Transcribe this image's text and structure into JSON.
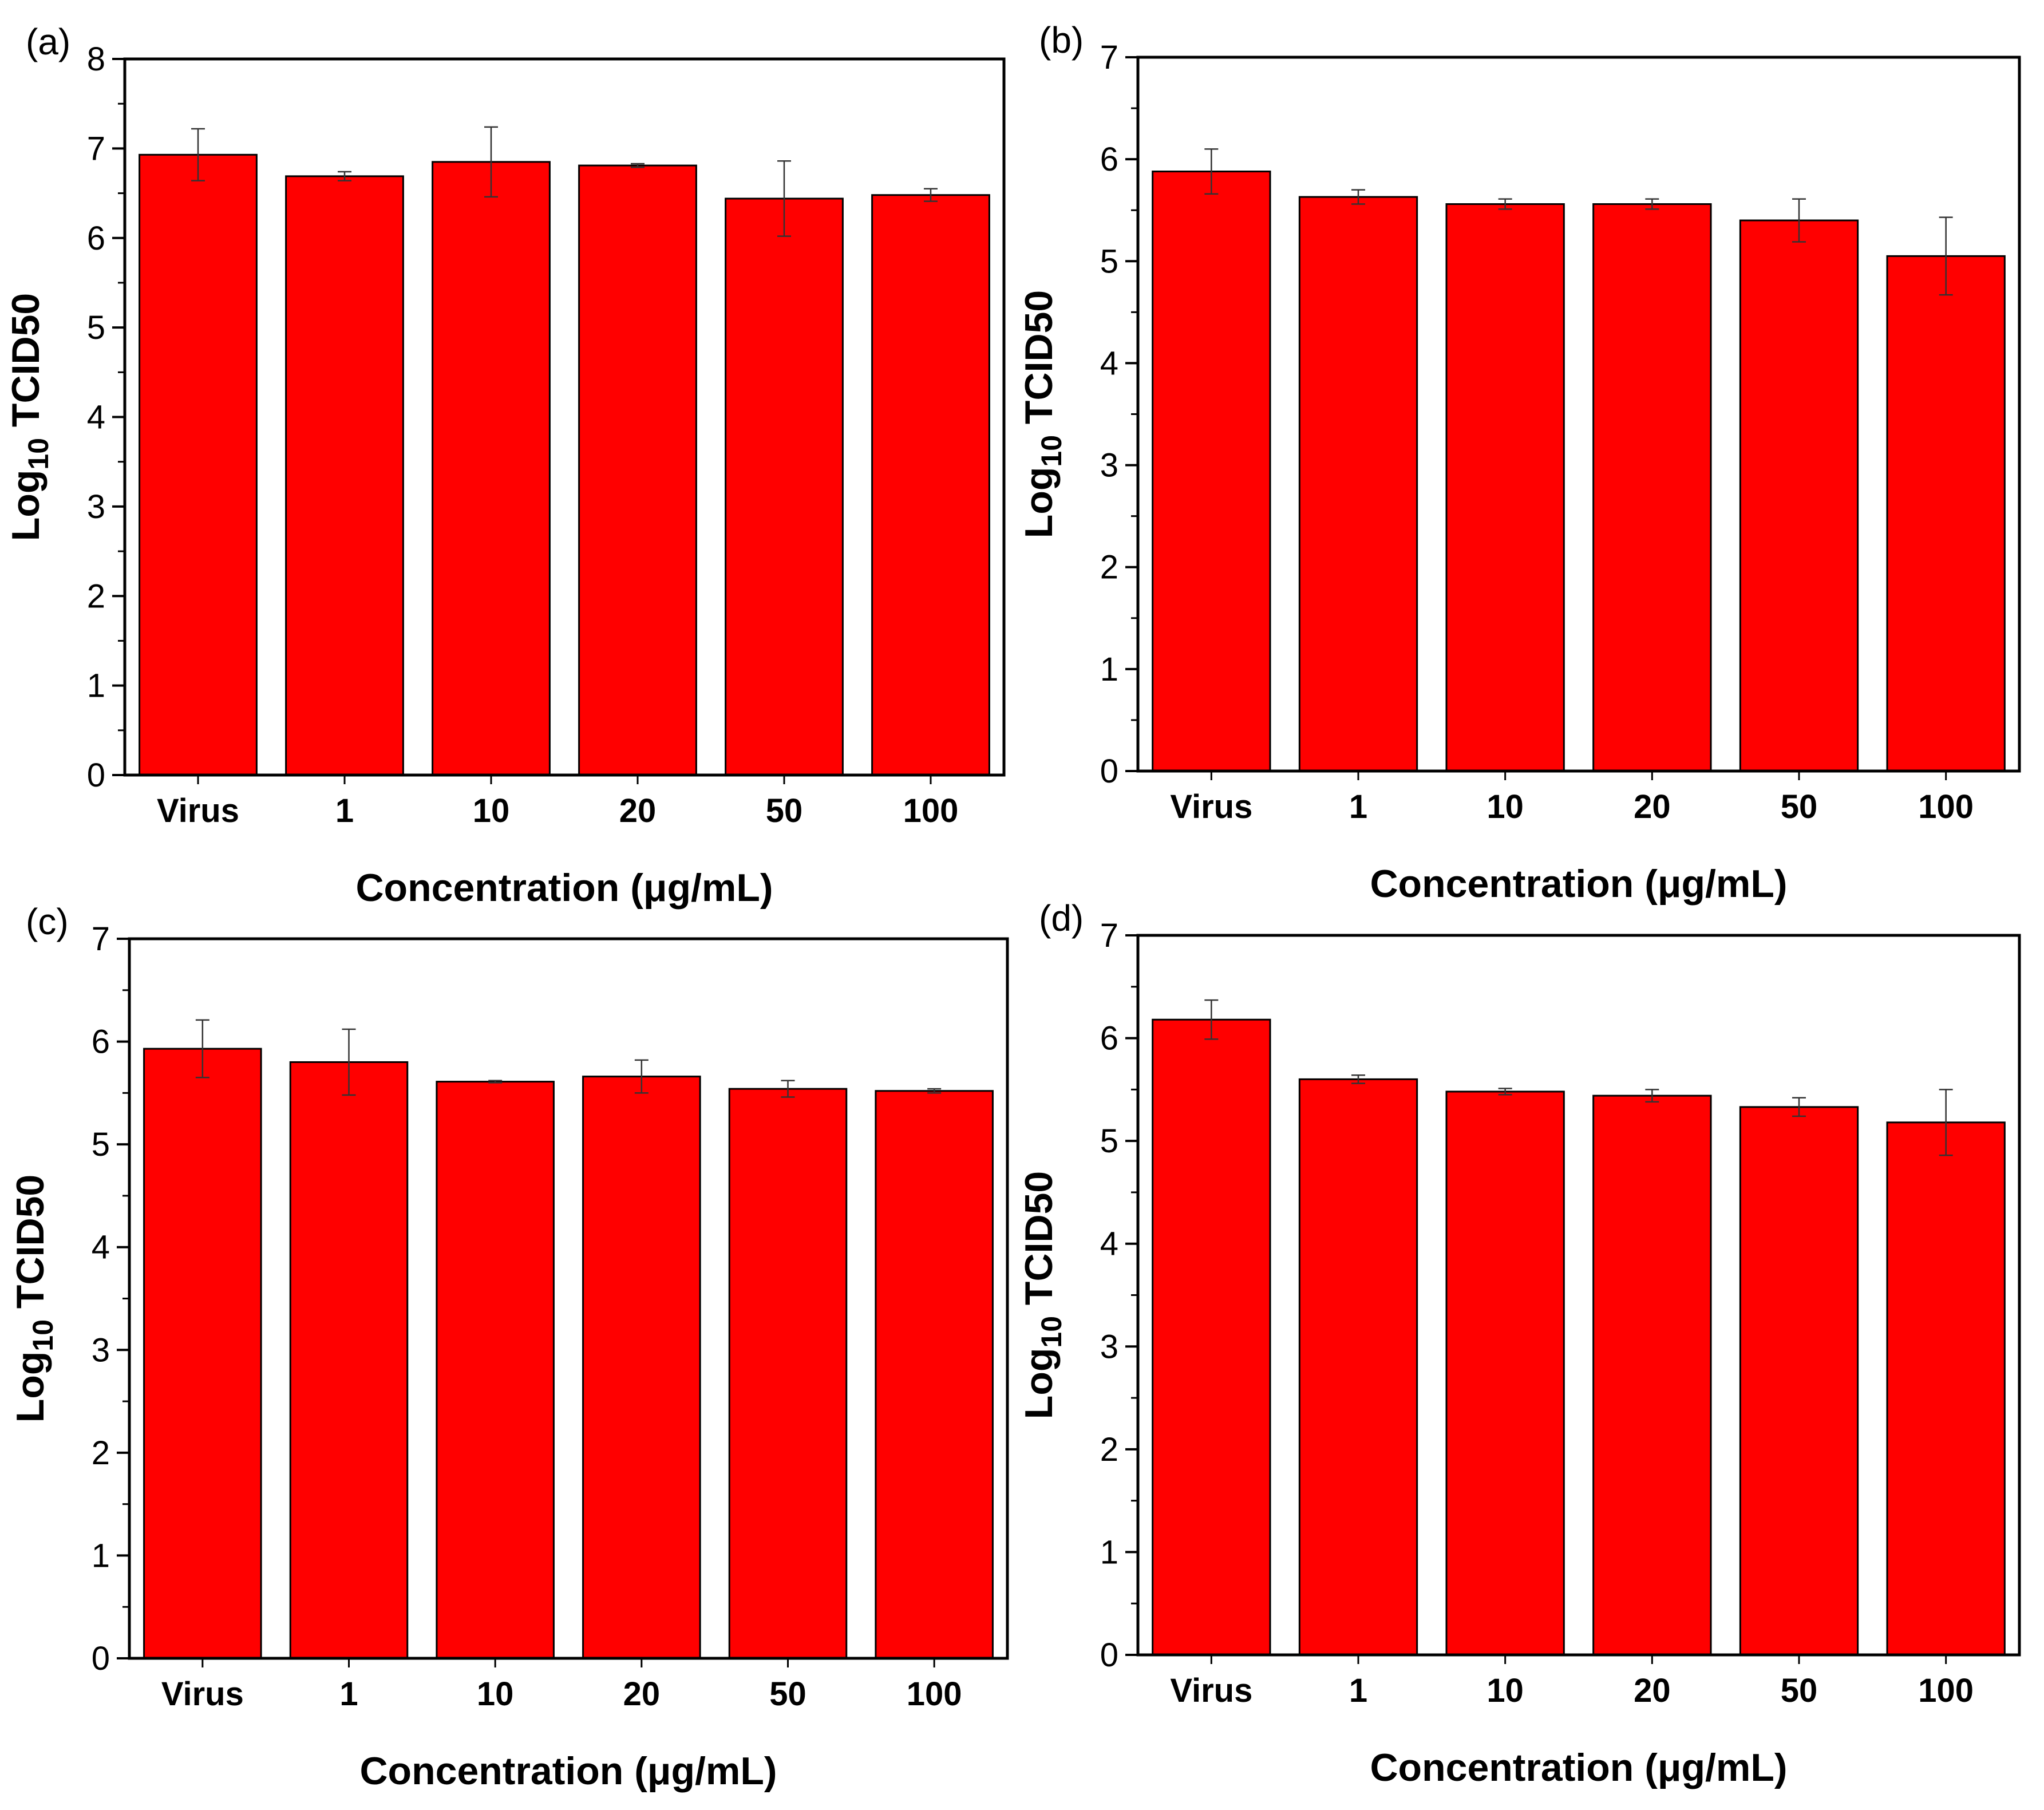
{
  "chart_data": [
    {
      "panel_label": "(a)",
      "type": "bar",
      "categories": [
        "Virus",
        "1",
        "10",
        "20",
        "50",
        "100"
      ],
      "series": [
        {
          "values": [
            6.93,
            6.69,
            6.85,
            6.81,
            6.44,
            6.48
          ],
          "errors": [
            0.29,
            0.05,
            0.39,
            0.02,
            0.42,
            0.07
          ]
        }
      ],
      "ylim": [
        0,
        8
      ],
      "yticks": [
        0,
        1,
        2,
        3,
        4,
        5,
        6,
        7,
        8
      ],
      "xlabel": "Concentration (μg/mL)",
      "ylabel_main": "Log",
      "ylabel_sub": "10",
      "ylabel_rest": " TCID50",
      "bar_color": "#ff0000",
      "grid": false
    },
    {
      "panel_label": "(b)",
      "type": "bar",
      "categories": [
        "Virus",
        "1",
        "10",
        "20",
        "50",
        "100"
      ],
      "series": [
        {
          "values": [
            5.88,
            5.63,
            5.56,
            5.56,
            5.4,
            5.05
          ],
          "errors": [
            0.22,
            0.07,
            0.05,
            0.05,
            0.21,
            0.38
          ]
        }
      ],
      "ylim": [
        0,
        7
      ],
      "yticks": [
        0,
        1,
        2,
        3,
        4,
        5,
        6,
        7
      ],
      "xlabel": "Concentration (μg/mL)",
      "ylabel_main": "Log",
      "ylabel_sub": "10",
      "ylabel_rest": " TCID50",
      "bar_color": "#ff0000",
      "grid": false
    },
    {
      "panel_label": "(c)",
      "type": "bar",
      "categories": [
        "Virus",
        "1",
        "10",
        "20",
        "50",
        "100"
      ],
      "series": [
        {
          "values": [
            5.93,
            5.8,
            5.61,
            5.66,
            5.54,
            5.52
          ],
          "errors": [
            0.28,
            0.32,
            0.01,
            0.16,
            0.08,
            0.02
          ]
        }
      ],
      "ylim": [
        0,
        7
      ],
      "yticks": [
        0,
        1,
        2,
        3,
        4,
        5,
        6,
        7
      ],
      "xlabel": "Concentration (μg/mL)",
      "ylabel_main": "Log",
      "ylabel_sub": "10",
      "ylabel_rest": " TCID50",
      "bar_color": "#ff0000",
      "grid": false
    },
    {
      "panel_label": "(d)",
      "type": "bar",
      "categories": [
        "Virus",
        "1",
        "10",
        "20",
        "50",
        "100"
      ],
      "series": [
        {
          "values": [
            6.18,
            5.6,
            5.48,
            5.44,
            5.33,
            5.18
          ],
          "errors": [
            0.19,
            0.04,
            0.03,
            0.06,
            0.09,
            0.32
          ]
        }
      ],
      "ylim": [
        0,
        7
      ],
      "yticks": [
        0,
        1,
        2,
        3,
        4,
        5,
        6,
        7
      ],
      "xlabel": "Concentration (μg/mL)",
      "ylabel_main": "Log",
      "ylabel_sub": "10",
      "ylabel_rest": " TCID50",
      "bar_color": "#ff0000",
      "grid": false
    }
  ]
}
